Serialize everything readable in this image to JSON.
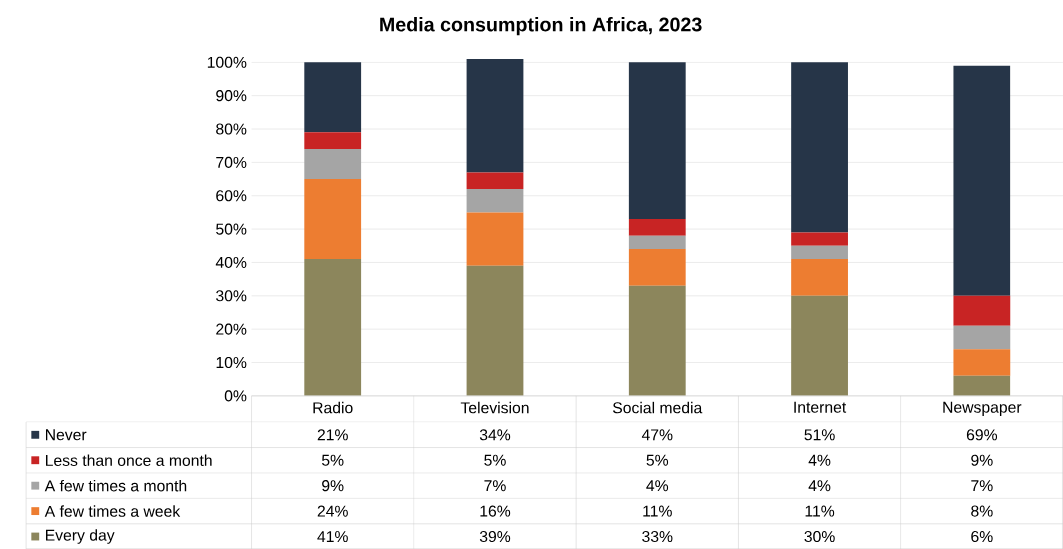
{
  "chart_data": {
    "type": "bar",
    "stacked": true,
    "title": "Media consumption in Africa, 2023",
    "categories": [
      "Radio",
      "Television",
      "Social media",
      "Internet",
      "Newspaper"
    ],
    "series": [
      {
        "name": "Every day",
        "color": "#8c865c",
        "values": [
          41,
          39,
          33,
          30,
          6
        ],
        "value_labels": [
          "41%",
          "39%",
          "33%",
          "30%",
          "6%"
        ]
      },
      {
        "name": "A few times a week",
        "color": "#ed7d31",
        "values": [
          24,
          16,
          11,
          11,
          8
        ],
        "value_labels": [
          "24%",
          "16%",
          "11%",
          "11%",
          "8%"
        ]
      },
      {
        "name": "A few times a month",
        "color": "#a5a5a5",
        "values": [
          9,
          7,
          4,
          4,
          7
        ],
        "value_labels": [
          "9%",
          "7%",
          "4%",
          "4%",
          "7%"
        ]
      },
      {
        "name": "Less than once a month",
        "color": "#c82424",
        "values": [
          5,
          5,
          5,
          4,
          9
        ],
        "value_labels": [
          "5%",
          "5%",
          "5%",
          "4%",
          "9%"
        ]
      },
      {
        "name": "Never",
        "color": "#263548",
        "values": [
          21,
          34,
          47,
          51,
          69
        ],
        "value_labels": [
          "21%",
          "34%",
          "47%",
          "51%",
          "69%"
        ]
      }
    ],
    "ylim": [
      0,
      101
    ],
    "yticks": [
      {
        "value": 0,
        "label": "0%"
      },
      {
        "value": 10,
        "label": "10%"
      },
      {
        "value": 20,
        "label": "20%"
      },
      {
        "value": 30,
        "label": "30%"
      },
      {
        "value": 40,
        "label": "40%"
      },
      {
        "value": 50,
        "label": "50%"
      },
      {
        "value": 60,
        "label": "60%"
      },
      {
        "value": 70,
        "label": "70%"
      },
      {
        "value": 80,
        "label": "80%"
      },
      {
        "value": 90,
        "label": "90%"
      },
      {
        "value": 100,
        "label": "100%"
      }
    ],
    "grid": "y",
    "legend": "bottom"
  }
}
